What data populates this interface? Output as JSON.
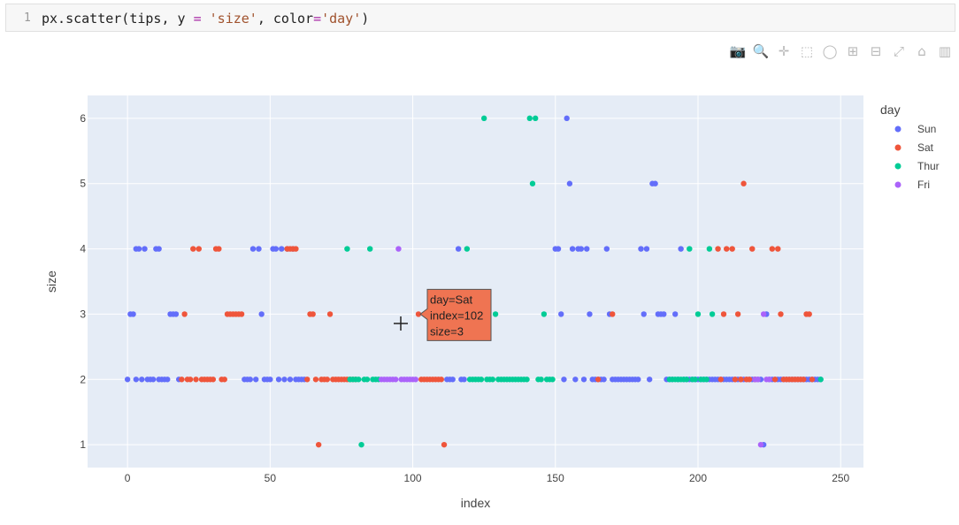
{
  "code": {
    "line_number": "1",
    "parts": {
      "fn": "px.scatter(tips, y ",
      "eq": "=",
      "mid": " ",
      "size_str": "'size'",
      "comma": ", color",
      "eq2": "=",
      "day_str": "'day'",
      "close": ")"
    }
  },
  "modebar": {
    "buttons": [
      {
        "name": "camera-icon",
        "glyph": "📷"
      },
      {
        "name": "zoom-icon",
        "glyph": "🔍"
      },
      {
        "name": "pan-icon",
        "glyph": "✛"
      },
      {
        "name": "box-select-icon",
        "glyph": "⬚"
      },
      {
        "name": "lasso-select-icon",
        "glyph": "◯"
      },
      {
        "name": "zoom-in-icon",
        "glyph": "⊞"
      },
      {
        "name": "zoom-out-icon",
        "glyph": "⊟"
      },
      {
        "name": "autoscale-icon",
        "glyph": "⤢"
      },
      {
        "name": "reset-axes-icon",
        "glyph": "⌂"
      },
      {
        "name": "plotly-logo-icon",
        "glyph": "▥"
      }
    ]
  },
  "hover": {
    "lines": [
      "day=Sat",
      "index=102",
      "size=3"
    ],
    "color": "#EF7452"
  },
  "chart_data": {
    "type": "scatter",
    "xlabel": "index",
    "ylabel": "size",
    "xlim": [
      -14,
      258
    ],
    "ylim": [
      0.65,
      6.35
    ],
    "xticks": [
      0,
      50,
      100,
      150,
      200,
      250
    ],
    "yticks": [
      1,
      2,
      3,
      4,
      5,
      6
    ],
    "grid": true,
    "legend_title": "day",
    "legend_placement": "right",
    "series": [
      {
        "name": "Sun",
        "color": "#636EFA",
        "x": [
          0,
          1,
          2,
          3,
          3,
          4,
          5,
          6,
          7,
          8,
          9,
          10,
          11,
          11,
          12,
          13,
          14,
          15,
          16,
          17,
          18,
          41,
          42,
          43,
          44,
          45,
          46,
          47,
          48,
          49,
          50,
          51,
          52,
          53,
          54,
          55,
          56,
          57,
          58,
          59,
          60,
          61,
          62,
          112,
          113,
          114,
          115,
          116,
          117,
          118,
          150,
          151,
          152,
          153,
          154,
          155,
          156,
          157,
          158,
          159,
          160,
          161,
          162,
          163,
          164,
          165,
          166,
          167,
          168,
          169,
          170,
          171,
          172,
          173,
          174,
          175,
          176,
          177,
          178,
          179,
          180,
          181,
          182,
          183,
          184,
          185,
          186,
          187,
          188,
          189,
          190,
          191,
          192,
          193,
          194,
          195,
          196,
          197,
          198,
          199,
          200,
          201,
          202,
          203,
          204,
          205,
          206,
          207,
          208,
          209,
          210,
          211,
          212,
          213,
          214,
          215,
          216,
          217,
          218,
          219,
          220,
          221,
          222,
          223,
          224,
          225,
          226,
          227,
          228,
          229,
          230,
          231,
          232,
          233,
          234,
          235,
          236,
          237,
          238,
          239,
          240,
          241,
          242,
          243
        ],
        "y": [
          2,
          3,
          3,
          4,
          2,
          4,
          2,
          4,
          2,
          2,
          2,
          4,
          2,
          4,
          2,
          2,
          2,
          3,
          3,
          3,
          2,
          2,
          2,
          2,
          4,
          2,
          4,
          3,
          2,
          2,
          2,
          4,
          4,
          2,
          4,
          2,
          4,
          2,
          4,
          2,
          2,
          2,
          2,
          2,
          2,
          2,
          3,
          4,
          2,
          2,
          4,
          4,
          3,
          2,
          6,
          5,
          4,
          2,
          4,
          4,
          2,
          4,
          3,
          2,
          2,
          2,
          2,
          2,
          4,
          3,
          2,
          2,
          2,
          2,
          2,
          2,
          2,
          2,
          2,
          2,
          4,
          3,
          4,
          2,
          5,
          5,
          3,
          3,
          3,
          2,
          2,
          2,
          3,
          2,
          4,
          2,
          2,
          2,
          2,
          2,
          2,
          2,
          2,
          2,
          2,
          2,
          2,
          2,
          2,
          2,
          2,
          2,
          2,
          2,
          2,
          2,
          2,
          2,
          2,
          2,
          2,
          2,
          2,
          1,
          3,
          2,
          2,
          2,
          2,
          2,
          2,
          2,
          2,
          2,
          2,
          2,
          2,
          2,
          2,
          2,
          2,
          2,
          2,
          2
        ]
      },
      {
        "name": "Sat",
        "color": "#EF553B",
        "x": [
          19,
          20,
          21,
          22,
          23,
          24,
          25,
          26,
          27,
          28,
          29,
          30,
          31,
          32,
          33,
          34,
          35,
          36,
          37,
          38,
          39,
          40,
          56,
          57,
          58,
          59,
          63,
          64,
          65,
          66,
          67,
          68,
          69,
          70,
          71,
          72,
          73,
          74,
          75,
          76,
          77,
          78,
          79,
          80,
          102,
          103,
          104,
          105,
          106,
          107,
          108,
          109,
          110,
          111,
          165,
          170,
          207,
          208,
          209,
          210,
          212,
          213,
          214,
          215,
          216,
          217,
          218,
          219,
          220,
          226,
          227,
          228,
          229,
          230,
          231,
          232,
          233,
          234,
          235,
          236,
          237,
          238,
          239,
          240
        ],
        "y": [
          2,
          3,
          2,
          2,
          4,
          2,
          4,
          2,
          2,
          2,
          2,
          2,
          4,
          4,
          2,
          2,
          3,
          3,
          3,
          3,
          3,
          3,
          4,
          4,
          4,
          4,
          2,
          3,
          3,
          2,
          1,
          2,
          2,
          2,
          3,
          2,
          2,
          2,
          2,
          2,
          2,
          2,
          2,
          2,
          3,
          2,
          2,
          2,
          2,
          2,
          2,
          2,
          2,
          1,
          2,
          3,
          4,
          2,
          3,
          4,
          4,
          2,
          3,
          2,
          5,
          2,
          2,
          4,
          2,
          4,
          2,
          4,
          3,
          2,
          2,
          2,
          2,
          2,
          2,
          2,
          2,
          3,
          3,
          2
        ]
      },
      {
        "name": "Thur",
        "color": "#00CC96",
        "x": [
          77,
          78,
          79,
          80,
          81,
          82,
          83,
          84,
          85,
          86,
          87,
          88,
          119,
          120,
          121,
          122,
          123,
          124,
          125,
          126,
          127,
          128,
          129,
          130,
          131,
          132,
          133,
          134,
          135,
          136,
          137,
          138,
          139,
          140,
          141,
          142,
          143,
          144,
          145,
          146,
          147,
          148,
          149,
          190,
          191,
          192,
          193,
          194,
          195,
          196,
          197,
          198,
          199,
          200,
          201,
          202,
          203,
          204,
          205,
          243
        ],
        "y": [
          4,
          2,
          2,
          2,
          2,
          1,
          2,
          2,
          4,
          2,
          2,
          2,
          4,
          2,
          2,
          2,
          2,
          2,
          6,
          2,
          2,
          2,
          3,
          2,
          2,
          2,
          2,
          2,
          2,
          2,
          2,
          2,
          2,
          2,
          6,
          5,
          6,
          2,
          2,
          3,
          2,
          2,
          2,
          2,
          2,
          2,
          2,
          2,
          2,
          2,
          4,
          2,
          2,
          3,
          2,
          2,
          2,
          4,
          3,
          2
        ]
      },
      {
        "name": "Fri",
        "color": "#AB63FA",
        "x": [
          89,
          90,
          91,
          92,
          93,
          94,
          95,
          96,
          97,
          98,
          99,
          100,
          101,
          220,
          221,
          222,
          223,
          224,
          225
        ],
        "y": [
          2,
          2,
          2,
          2,
          2,
          2,
          4,
          2,
          2,
          2,
          2,
          2,
          2,
          2,
          2,
          1,
          3,
          2,
          2
        ]
      }
    ]
  }
}
